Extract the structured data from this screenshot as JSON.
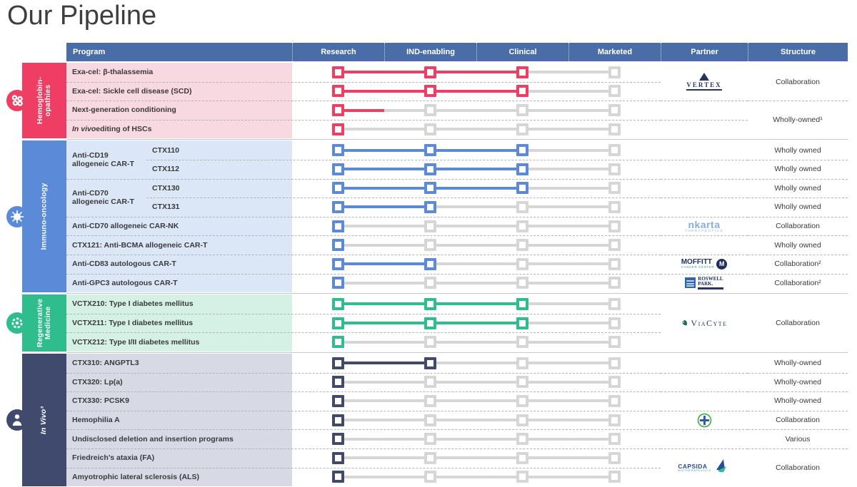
{
  "page": {
    "title": "Our Pipeline"
  },
  "table": {
    "columns": [
      "Program",
      "Research",
      "IND-enabling",
      "Clinical",
      "Marketed",
      "Partner",
      "Structure"
    ],
    "header_bg": "#4a6da7",
    "inactive_color": "#d6d6d6"
  },
  "groups": [
    {
      "key": "hemoglobinopathies",
      "name": "Hemoglobin-opathies",
      "label_lines": [
        "Hemoglobin-",
        "opathies"
      ],
      "italic": false,
      "icon": "blood-cells",
      "color": "#ee3e63",
      "row_bg": "#f8d8e1",
      "rows": [
        {
          "label": "Exa-cel: β-thalassemia",
          "progress": 2
        },
        {
          "label": "Exa-cel: Sickle cell disease (SCD)",
          "progress": 2
        },
        {
          "label": "Next-generation conditioning",
          "progress": 0,
          "stub": true
        },
        {
          "label": "In vivo editing of HSCs",
          "em": "In vivo",
          "progress": 0
        }
      ],
      "mains": [],
      "partners": [
        {
          "logo": "vertex",
          "row": 0,
          "span": 2
        }
      ],
      "structures": [
        {
          "text": "Collaboration",
          "row": 0,
          "span": 2
        },
        {
          "text": "Wholly-owned¹",
          "row": 2,
          "span": 2
        }
      ]
    },
    {
      "key": "immuno-oncology",
      "name": "Immuno-oncology",
      "label_lines": [
        "Immuno-oncology"
      ],
      "italic": false,
      "icon": "virus",
      "color": "#5b8ad8",
      "row_bg": "#dbe6f6",
      "rows": [
        {
          "sub": "CTX110",
          "progress": 2
        },
        {
          "sub": "CTX112",
          "progress": 2
        },
        {
          "sub": "CTX130",
          "progress": 2
        },
        {
          "sub": "CTX131",
          "progress": 1
        },
        {
          "label": "Anti-CD70 allogeneic CAR-NK",
          "progress": 0
        },
        {
          "label": "CTX121: Anti-BCMA allogeneic CAR-T",
          "progress": 0
        },
        {
          "label": "Anti-CD83 autologous CAR-T",
          "progress": 1
        },
        {
          "label": "Anti-GPC3 autologous CAR-T",
          "progress": 0
        }
      ],
      "mains": [
        {
          "text": "Anti-CD19 allogeneic CAR-T",
          "row": 0,
          "span": 2
        },
        {
          "text": "Anti-CD70 allogeneic CAR-T",
          "row": 2,
          "span": 2
        }
      ],
      "partners": [
        {
          "logo": "nkarta",
          "row": 4,
          "span": 1
        },
        {
          "logo": "moffitt",
          "row": 6,
          "span": 1
        },
        {
          "logo": "roswell",
          "row": 7,
          "span": 1
        }
      ],
      "structures": [
        {
          "text": "Wholly owned",
          "row": 0,
          "span": 1
        },
        {
          "text": "Wholly owned",
          "row": 1,
          "span": 1
        },
        {
          "text": "Wholly owned",
          "row": 2,
          "span": 1
        },
        {
          "text": "Wholly owned",
          "row": 3,
          "span": 1
        },
        {
          "text": "Collaboration",
          "row": 4,
          "span": 1
        },
        {
          "text": "Wholly owned",
          "row": 5,
          "span": 1
        },
        {
          "text": "Collaboration²",
          "row": 6,
          "span": 1
        },
        {
          "text": "Collaboration²",
          "row": 7,
          "span": 1
        }
      ]
    },
    {
      "key": "regenerative-medicine",
      "name": "Regenerative Medicine",
      "label_lines": [
        "Regenerative",
        "Medicine"
      ],
      "italic": false,
      "icon": "regen",
      "color": "#2fbd8e",
      "row_bg": "#d5f1e6",
      "rows": [
        {
          "label": "VCTX210: Type I diabetes mellitus",
          "progress": 2
        },
        {
          "label": "VCTX211: Type I diabetes mellitus",
          "progress": 2
        },
        {
          "label": "VCTX212: Type I/II diabetes mellitus",
          "progress": 0
        }
      ],
      "mains": [],
      "partners": [
        {
          "logo": "viacyte",
          "row": 0,
          "span": 3
        }
      ],
      "structures": [
        {
          "text": "Collaboration",
          "row": 0,
          "span": 3
        }
      ]
    },
    {
      "key": "in-vivo",
      "name": "In Vivo³",
      "label_lines": [
        "In Vivo³"
      ],
      "italic": true,
      "icon": "person",
      "color": "#404a6d",
      "row_bg": "#d7d9e4",
      "rows": [
        {
          "label": "CTX310: ANGPTL3",
          "progress": 1
        },
        {
          "label": "CTX320: Lp(a)",
          "progress": 0
        },
        {
          "label": "CTX330: PCSK9",
          "progress": 0
        },
        {
          "label": "Hemophilia A",
          "progress": 0
        },
        {
          "label": "Undisclosed deletion and insertion programs",
          "progress": 0
        },
        {
          "label": "Friedreich’s ataxia (FA)",
          "progress": 0
        },
        {
          "label": "Amyotrophic lateral sclerosis (ALS)",
          "progress": 0
        }
      ],
      "mains": [],
      "partners": [
        {
          "logo": "bayer",
          "row": 3,
          "span": 1
        },
        {
          "logo": "capsida",
          "row": 5,
          "span": 2
        }
      ],
      "structures": [
        {
          "text": "Wholly-owned",
          "row": 0,
          "span": 1
        },
        {
          "text": "Wholly-owned",
          "row": 1,
          "span": 1
        },
        {
          "text": "Wholly-owned",
          "row": 2,
          "span": 1
        },
        {
          "text": "Collaboration",
          "row": 3,
          "span": 1
        },
        {
          "text": "Various",
          "row": 4,
          "span": 1
        },
        {
          "text": "Collaboration",
          "row": 5,
          "span": 2
        }
      ]
    }
  ],
  "logos": {
    "vertex": {
      "name": "VERTEX"
    },
    "nkarta": {
      "name": "nkarta",
      "sub": "THERAPEUTICS"
    },
    "moffitt": {
      "name": "MOFFITT",
      "sub": "CANCER CENTER",
      "mark": "M"
    },
    "roswell": {
      "name_line1": "ROSWELL",
      "name_line2": "PARK."
    },
    "viacyte": {
      "name": "ViaCyte"
    },
    "bayer": {
      "name": "Bayer"
    },
    "capsida": {
      "name": "CAPSIDA",
      "sub": "BIOTHERAPEUTICS"
    }
  }
}
